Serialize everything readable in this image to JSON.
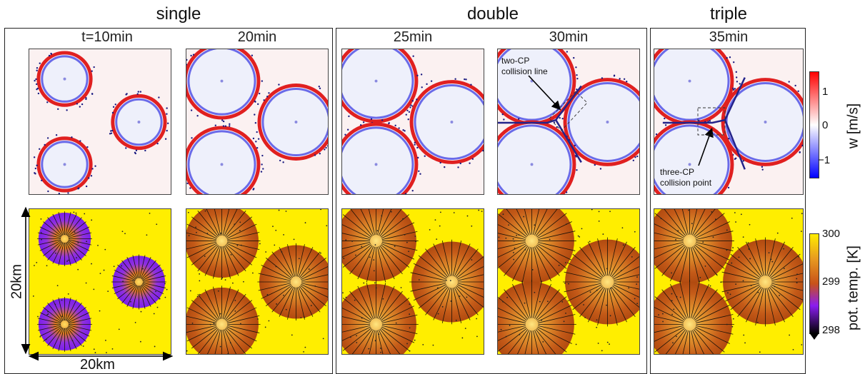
{
  "sections": {
    "single": "single",
    "double": "double",
    "triple": "triple"
  },
  "times": [
    "t=10min",
    "20min",
    "25min",
    "30min",
    "35min"
  ],
  "colorbar_w": {
    "label": "w [m/s]",
    "ticks": [
      "1",
      "0",
      "−1"
    ],
    "range": [
      -1.5,
      1.5
    ],
    "colors": {
      "neg": "#0000ff",
      "mid": "#ffffff",
      "pos": "#ff0000"
    }
  },
  "colorbar_theta": {
    "label": "pot. temp. [K]",
    "ticks": [
      "300",
      "299",
      "298"
    ],
    "range": [
      298,
      300
    ],
    "colors": {
      "low": "#000000",
      "purple": "#8a1cf0",
      "mid": "#c8521a",
      "orange": "#e89a20",
      "high": "#ffee00"
    }
  },
  "annotations": {
    "two_cp": "two-CP collision line",
    "three_cp": "three-CP collision point"
  },
  "scale": {
    "vertical": "20km",
    "horizontal": "20km"
  }
}
